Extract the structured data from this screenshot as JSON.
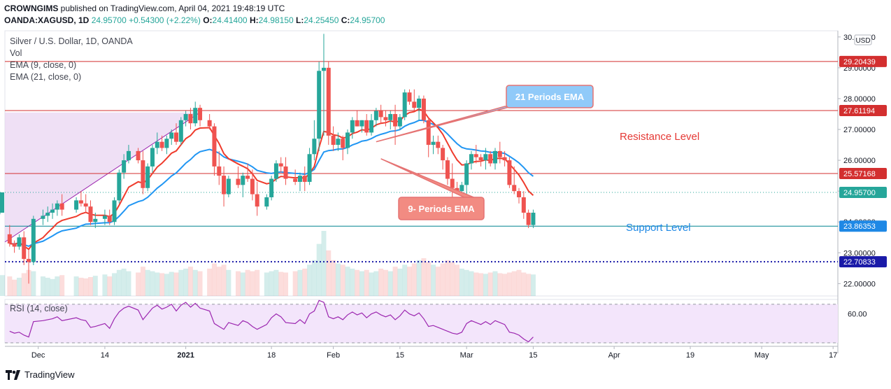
{
  "header": {
    "author": "CROWNGIMS",
    "published_text": "published on TradingView.com, April 04, 2021 19:48:19 UTC",
    "symbol": "OANDA:XAGUSD, 1D",
    "last": "24.95700",
    "change": "+0.54300 (+2.22%)",
    "o_label": "O:",
    "o": "24.41400",
    "h_label": "H:",
    "h": "24.98150",
    "l_label": "L:",
    "l": "24.25450",
    "c_label": "C:",
    "c": "24.95700"
  },
  "legend": {
    "title": "Silver / U.S. Dollar, 1D, OANDA",
    "vol": "Vol",
    "ema9": "EMA (9, close, 0)",
    "ema21": "EMA (21, close, 0)"
  },
  "rsi_label": "RSI (14, close)",
  "currency": "USD",
  "branding": "TradingView",
  "colors": {
    "up": "#26a69a",
    "down": "#ef5350",
    "ema9": "#ef3b2c",
    "ema21": "#2196f3",
    "resistance": "#d32f2f",
    "support": "#00838f",
    "dotted": "#1a1aa8",
    "rsi": "#9c27b0",
    "rsi_band": "#f3e5fb",
    "shade": "#e9d5f2",
    "callout_blue": "#90caf9",
    "callout_red": "#f28b82",
    "text_red": "#e53935",
    "text_blue": "#1e88e5"
  },
  "annotations": {
    "ema21_callout": "21 Periods EMA",
    "ema9_callout": "9- Periods EMA",
    "resistance_label": "Resistance Level",
    "support_label": "Support Level"
  },
  "chart_data": {
    "type": "candlestick",
    "title": "Silver / U.S. Dollar, 1D, OANDA",
    "ylim": [
      21.6,
      30.2
    ],
    "y_ticks": [
      "30.00000",
      "29.00000",
      "28.00000",
      "27.00000",
      "26.00000",
      "25.00000",
      "24.00000",
      "23.00000",
      "22.00000"
    ],
    "x_ticks": [
      "Dec",
      "14",
      "2021",
      "18",
      "Feb",
      "15",
      "Mar",
      "15",
      "Apr",
      "19",
      "May",
      "17"
    ],
    "x_tick_days": [
      0,
      14,
      31,
      49,
      62,
      76,
      90,
      104,
      121,
      137,
      152,
      167
    ],
    "x_range_days": [
      -7,
      168
    ],
    "price_tags": [
      {
        "value": 29.20439,
        "label": "29.20439",
        "kind": "resistance"
      },
      {
        "value": 27.61194,
        "label": "27.61194",
        "kind": "resistance"
      },
      {
        "value": 25.57168,
        "label": "25.57168",
        "kind": "resistance"
      },
      {
        "value": 24.957,
        "label": "24.95700",
        "kind": "last"
      },
      {
        "value": 23.86353,
        "label": "23.86353",
        "kind": "support"
      },
      {
        "value": 22.70833,
        "label": "22.70833",
        "kind": "dotted"
      }
    ],
    "candles_ohlc": [
      [
        23.6,
        23.9,
        23.2,
        23.3
      ],
      [
        23.3,
        23.4,
        23.0,
        23.2
      ],
      [
        23.2,
        23.6,
        23.1,
        23.5
      ],
      [
        23.5,
        23.7,
        22.6,
        22.8
      ],
      [
        22.8,
        23.1,
        22.0,
        22.7
      ],
      [
        22.7,
        24.2,
        22.6,
        24.1
      ],
      [
        24.1,
        24.4,
        23.9,
        24.2
      ],
      [
        24.2,
        24.5,
        24.0,
        24.3
      ],
      [
        24.3,
        24.6,
        24.1,
        24.4
      ],
      [
        24.4,
        24.7,
        24.2,
        24.6
      ],
      [
        24.6,
        24.9,
        24.2,
        24.4
      ],
      [
        24.4,
        24.8,
        24.3,
        24.7
      ],
      [
        24.7,
        25.0,
        24.5,
        24.6
      ],
      [
        24.6,
        24.9,
        24.3,
        24.5
      ],
      [
        24.5,
        24.7,
        23.9,
        24.0
      ],
      [
        24.0,
        24.3,
        23.8,
        24.1
      ],
      [
        24.1,
        24.4,
        23.9,
        24.2
      ],
      [
        24.2,
        24.4,
        23.9,
        24.0
      ],
      [
        24.0,
        24.8,
        23.9,
        24.7
      ],
      [
        24.7,
        25.7,
        24.6,
        25.6
      ],
      [
        25.6,
        26.2,
        25.4,
        26.0
      ],
      [
        26.0,
        26.5,
        25.9,
        26.3
      ],
      [
        26.3,
        26.4,
        25.9,
        26.0
      ],
      [
        26.0,
        26.3,
        24.9,
        25.1
      ],
      [
        25.1,
        25.9,
        25.0,
        25.8
      ],
      [
        25.8,
        26.5,
        25.6,
        26.4
      ],
      [
        26.4,
        26.9,
        26.2,
        26.6
      ],
      [
        26.6,
        26.8,
        26.3,
        26.4
      ],
      [
        26.4,
        26.8,
        26.2,
        26.7
      ],
      [
        26.7,
        27.0,
        26.5,
        26.9
      ],
      [
        26.9,
        27.2,
        26.5,
        26.6
      ],
      [
        26.6,
        27.4,
        26.5,
        27.3
      ],
      [
        27.3,
        27.6,
        27.1,
        27.5
      ],
      [
        27.5,
        27.7,
        27.0,
        27.2
      ],
      [
        27.2,
        27.9,
        27.1,
        27.7
      ],
      [
        27.7,
        27.8,
        27.1,
        27.3
      ],
      [
        27.3,
        27.5,
        27.0,
        27.1
      ],
      [
        27.1,
        27.2,
        25.5,
        25.8
      ],
      [
        25.8,
        26.3,
        25.2,
        25.5
      ],
      [
        25.5,
        25.8,
        24.5,
        24.9
      ],
      [
        24.9,
        25.5,
        24.8,
        25.4
      ],
      [
        25.4,
        25.8,
        25.1,
        25.2
      ],
      [
        25.2,
        25.6,
        24.8,
        25.5
      ],
      [
        25.5,
        25.9,
        25.3,
        25.4
      ],
      [
        25.4,
        25.7,
        24.7,
        24.9
      ],
      [
        24.9,
        25.3,
        24.2,
        24.5
      ],
      [
        24.5,
        24.9,
        24.4,
        24.8
      ],
      [
        24.8,
        25.5,
        24.7,
        25.4
      ],
      [
        25.4,
        26.0,
        25.3,
        25.9
      ],
      [
        25.9,
        26.1,
        25.6,
        25.8
      ],
      [
        25.8,
        26.1,
        25.2,
        25.4
      ],
      [
        25.4,
        25.7,
        25.2,
        25.3
      ],
      [
        25.3,
        25.6,
        25.0,
        25.5
      ],
      [
        25.5,
        25.8,
        25.0,
        25.3
      ],
      [
        25.3,
        26.4,
        25.2,
        26.2
      ],
      [
        26.2,
        27.3,
        26.0,
        26.7
      ],
      [
        26.7,
        29.2,
        26.3,
        28.9
      ],
      [
        28.9,
        30.1,
        26.8,
        29.0
      ],
      [
        29.0,
        29.2,
        26.5,
        26.8
      ],
      [
        26.8,
        27.1,
        26.3,
        26.5
      ],
      [
        26.5,
        26.9,
        26.3,
        26.7
      ],
      [
        26.7,
        26.8,
        26.0,
        26.4
      ],
      [
        26.4,
        27.0,
        26.2,
        26.9
      ],
      [
        26.9,
        27.4,
        26.7,
        27.3
      ],
      [
        27.3,
        27.6,
        27.1,
        27.1
      ],
      [
        27.1,
        27.3,
        26.9,
        27.3
      ],
      [
        27.3,
        27.5,
        26.8,
        26.9
      ],
      [
        26.9,
        27.5,
        26.8,
        27.3
      ],
      [
        27.3,
        27.7,
        27.1,
        27.6
      ],
      [
        27.6,
        27.8,
        27.2,
        27.4
      ],
      [
        27.4,
        27.6,
        27.1,
        27.3
      ],
      [
        27.3,
        27.6,
        27.0,
        27.5
      ],
      [
        27.5,
        27.8,
        26.5,
        27.1
      ],
      [
        27.1,
        27.5,
        27.0,
        27.4
      ],
      [
        27.4,
        28.3,
        27.3,
        28.2
      ],
      [
        28.2,
        28.3,
        27.8,
        27.9
      ],
      [
        27.9,
        28.3,
        27.6,
        27.7
      ],
      [
        27.7,
        28.1,
        27.3,
        28.0
      ],
      [
        28.0,
        28.1,
        27.2,
        27.3
      ],
      [
        27.3,
        27.4,
        26.1,
        26.5
      ],
      [
        26.5,
        26.8,
        26.2,
        26.6
      ],
      [
        26.6,
        26.8,
        26.2,
        26.4
      ],
      [
        26.4,
        26.5,
        25.7,
        26.0
      ],
      [
        26.0,
        26.1,
        25.2,
        25.4
      ],
      [
        25.4,
        25.9,
        24.7,
        25.1
      ],
      [
        25.1,
        25.3,
        24.9,
        25.0
      ],
      [
        25.0,
        25.3,
        24.9,
        25.2
      ],
      [
        25.2,
        26.0,
        24.9,
        25.9
      ],
      [
        25.9,
        26.3,
        25.7,
        26.2
      ],
      [
        26.2,
        26.5,
        25.9,
        26.1
      ],
      [
        26.1,
        26.2,
        25.8,
        26.0
      ],
      [
        26.0,
        26.4,
        25.7,
        26.2
      ],
      [
        26.2,
        26.3,
        25.8,
        25.9
      ],
      [
        25.9,
        26.4,
        25.7,
        26.3
      ],
      [
        26.3,
        26.6,
        25.9,
        26.1
      ],
      [
        26.1,
        26.3,
        25.8,
        26.0
      ],
      [
        26.0,
        26.1,
        25.1,
        25.2
      ],
      [
        25.2,
        25.8,
        24.9,
        25.0
      ],
      [
        25.0,
        25.1,
        24.6,
        24.8
      ],
      [
        24.8,
        25.0,
        24.1,
        24.3
      ],
      [
        24.3,
        24.4,
        23.8,
        23.9
      ],
      [
        23.9,
        24.4,
        23.8,
        24.3
      ],
      [
        24.3,
        24.98,
        24.25,
        24.96
      ]
    ],
    "candle_days": [
      -6,
      -5,
      -4,
      -3,
      -2,
      -1,
      1,
      2,
      3,
      4,
      5,
      8,
      9,
      10,
      11,
      12,
      14,
      15,
      16,
      17,
      18,
      19,
      21,
      22,
      23,
      24,
      25,
      26,
      27,
      28,
      29,
      30,
      31,
      32,
      33,
      34,
      36,
      37,
      38,
      39,
      40,
      42,
      43,
      44,
      45,
      46,
      48,
      49,
      50,
      51,
      52,
      54,
      55,
      56,
      57,
      58,
      59,
      60,
      61,
      62,
      63,
      64,
      65,
      66,
      67,
      68,
      69,
      70,
      71,
      72,
      73,
      74,
      75,
      76,
      77,
      78,
      79,
      80,
      81,
      82,
      83,
      84,
      85,
      86,
      87,
      88,
      89,
      90,
      91,
      92,
      93,
      94,
      95,
      96,
      97,
      98,
      99,
      100,
      101,
      102,
      103,
      104
    ],
    "volumes": [
      0.3,
      0.25,
      0.28,
      0.35,
      0.4,
      0.38,
      0.3,
      0.28,
      0.26,
      0.3,
      0.32,
      0.3,
      0.28,
      0.27,
      0.29,
      0.31,
      0.33,
      0.3,
      0.35,
      0.4,
      0.42,
      0.38,
      0.36,
      0.45,
      0.4,
      0.38,
      0.36,
      0.35,
      0.34,
      0.37,
      0.36,
      0.4,
      0.42,
      0.45,
      0.4,
      0.38,
      0.42,
      0.5,
      0.45,
      0.48,
      0.4,
      0.38,
      0.36,
      0.4,
      0.38,
      0.4,
      0.36,
      0.38,
      0.4,
      0.37,
      0.36,
      0.38,
      0.4,
      0.42,
      0.48,
      0.55,
      0.8,
      1.0,
      0.7,
      0.55,
      0.5,
      0.48,
      0.45,
      0.42,
      0.4,
      0.38,
      0.4,
      0.36,
      0.38,
      0.42,
      0.4,
      0.38,
      0.45,
      0.42,
      0.48,
      0.45,
      0.5,
      0.55,
      0.58,
      0.52,
      0.48,
      0.45,
      0.5,
      0.55,
      0.52,
      0.48,
      0.42,
      0.4,
      0.38,
      0.36,
      0.35,
      0.34,
      0.36,
      0.38,
      0.35,
      0.34,
      0.36,
      0.38,
      0.4,
      0.36,
      0.34,
      0.33,
      0.32
    ],
    "rsi_values": [
      42,
      40,
      41,
      38,
      36,
      52,
      53,
      54,
      55,
      57,
      53,
      56,
      54,
      53,
      46,
      47,
      50,
      45,
      55,
      62,
      66,
      68,
      64,
      54,
      60,
      66,
      69,
      65,
      67,
      70,
      63,
      69,
      72,
      67,
      71,
      66,
      63,
      50,
      47,
      44,
      51,
      48,
      53,
      51,
      47,
      44,
      49,
      56,
      60,
      57,
      51,
      50,
      54,
      50,
      60,
      63,
      74,
      72,
      57,
      55,
      57,
      54,
      59,
      62,
      59,
      61,
      56,
      60,
      62,
      59,
      57,
      59,
      54,
      58,
      64,
      60,
      58,
      61,
      55,
      47,
      48,
      46,
      44,
      42,
      40,
      39,
      41,
      50,
      53,
      51,
      49,
      52,
      49,
      53,
      51,
      49,
      41,
      40,
      38,
      34,
      31,
      36,
      42
    ],
    "rsi_range": [
      30,
      75
    ],
    "rsi_ticks": [
      "60.00"
    ]
  }
}
